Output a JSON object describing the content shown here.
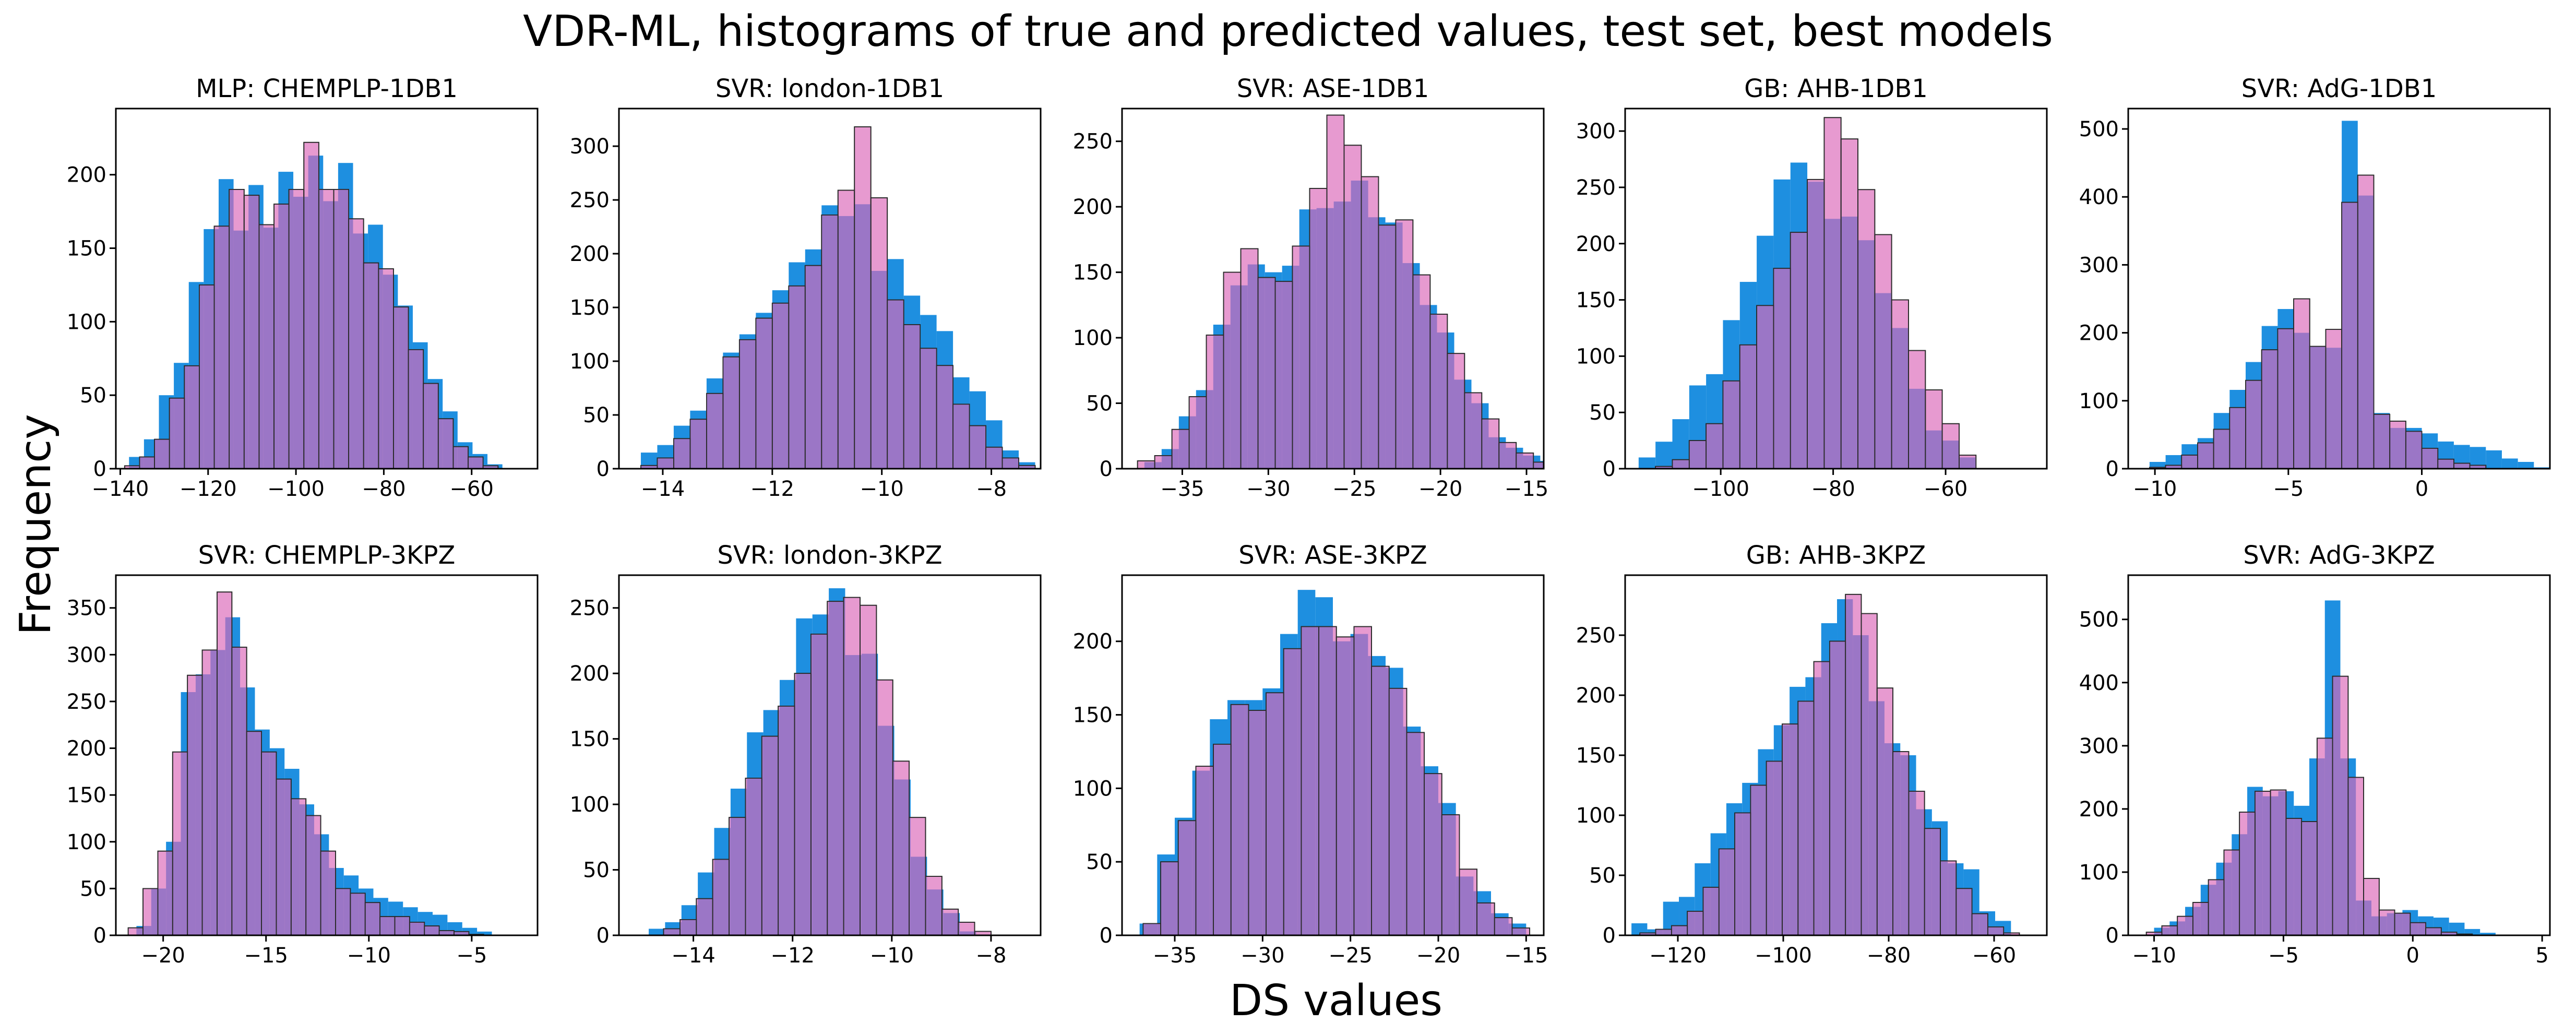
{
  "figure": {
    "title": "VDR-ML, histograms of true and predicted values, test set, best models",
    "xlabel": "DS values",
    "ylabel": "Frequency",
    "colors": {
      "true": "#1e8fe0",
      "predicted": "#e79ad0",
      "overlap": "#9b76c6",
      "edge": "#2a2a2a"
    }
  },
  "chart_data": [
    {
      "type": "bar",
      "title": "MLP: CHEMPLP-1DB1",
      "xlim": [
        -141,
        -45
      ],
      "ylim": [
        0,
        245
      ],
      "xticks": [
        -140,
        -120,
        -100,
        -80,
        -60
      ],
      "yticks": [
        0,
        50,
        100,
        150,
        200
      ],
      "series": [
        {
          "role": "true",
          "start": -138,
          "width": 3.4,
          "values": [
            8,
            20,
            50,
            72,
            127,
            163,
            197,
            162,
            193,
            164,
            202,
            185,
            213,
            182,
            208,
            160,
            166,
            132,
            111,
            86,
            61,
            39,
            18,
            10,
            3
          ]
        },
        {
          "role": "predicted",
          "start": -139,
          "width": 3.4,
          "values": [
            2,
            8,
            20,
            48,
            70,
            125,
            165,
            190,
            186,
            166,
            180,
            190,
            222,
            190,
            190,
            170,
            140,
            136,
            110,
            81,
            58,
            34,
            15,
            8,
            2
          ]
        }
      ]
    },
    {
      "type": "bar",
      "title": "SVR: london-1DB1",
      "xlim": [
        -14.8,
        -7.1
      ],
      "ylim": [
        0,
        335
      ],
      "xticks": [
        -14,
        -12,
        -10,
        -8
      ],
      "yticks": [
        0,
        50,
        100,
        150,
        200,
        250,
        300
      ],
      "series": [
        {
          "role": "true",
          "start": -14.4,
          "width": 0.3,
          "values": [
            15,
            22,
            40,
            54,
            84,
            108,
            125,
            145,
            166,
            192,
            204,
            245,
            235,
            246,
            184,
            195,
            161,
            143,
            128,
            85,
            72,
            45,
            17,
            6
          ]
        },
        {
          "role": "predicted",
          "start": -14.4,
          "width": 0.3,
          "values": [
            3,
            10,
            28,
            46,
            70,
            104,
            120,
            140,
            154,
            170,
            189,
            236,
            259,
            318,
            252,
            157,
            134,
            112,
            96,
            60,
            40,
            20,
            10,
            3
          ]
        }
      ]
    },
    {
      "type": "bar",
      "title": "SVR: ASE-1DB1",
      "xlim": [
        -38.5,
        -14
      ],
      "ylim": [
        0,
        275
      ],
      "xticks": [
        -35,
        -30,
        -25,
        -20,
        -15
      ],
      "yticks": [
        0,
        50,
        100,
        150,
        200,
        250
      ],
      "series": [
        {
          "role": "true",
          "start": -37.2,
          "width": 1,
          "values": [
            5,
            15,
            40,
            60,
            110,
            140,
            156,
            150,
            155,
            198,
            199,
            204,
            220,
            192,
            188,
            157,
            125,
            104,
            68,
            50,
            24,
            16,
            10,
            6
          ]
        },
        {
          "role": "predicted",
          "start": -37.6,
          "width": 1,
          "values": [
            6,
            10,
            30,
            55,
            102,
            150,
            168,
            146,
            143,
            170,
            214,
            270,
            247,
            223,
            186,
            190,
            148,
            118,
            88,
            58,
            38,
            20,
            12,
            5
          ]
        }
      ]
    },
    {
      "type": "bar",
      "title": "GB: AHB-1DB1",
      "xlim": [
        -117,
        -42
      ],
      "ylim": [
        0,
        320
      ],
      "xticks": [
        -100,
        -80,
        -60
      ],
      "yticks": [
        0,
        50,
        100,
        150,
        200,
        250,
        300
      ],
      "series": [
        {
          "role": "true",
          "start": -114.6,
          "width": 3,
          "values": [
            10,
            24,
            44,
            74,
            84,
            132,
            166,
            207,
            257,
            272,
            255,
            222,
            224,
            203,
            156,
            125,
            71,
            34,
            25,
            10
          ]
        },
        {
          "role": "predicted",
          "start": -111.6,
          "width": 3,
          "values": [
            2,
            8,
            25,
            40,
            78,
            110,
            145,
            178,
            210,
            257,
            312,
            293,
            248,
            208,
            150,
            105,
            70,
            40,
            12
          ]
        }
      ]
    },
    {
      "type": "bar",
      "title": "SVR: AdG-1DB1",
      "xlim": [
        -11,
        4.8
      ],
      "ylim": [
        0,
        530
      ],
      "xticks": [
        -10,
        -5,
        0
      ],
      "yticks": [
        0,
        100,
        200,
        300,
        400,
        500
      ],
      "series": [
        {
          "role": "true",
          "start": -10.2,
          "width": 0.6,
          "values": [
            10,
            20,
            36,
            45,
            82,
            116,
            157,
            210,
            235,
            200,
            180,
            178,
            512,
            402,
            82,
            60,
            60,
            52,
            40,
            35,
            32,
            27,
            15,
            10,
            2
          ]
        },
        {
          "role": "predicted",
          "start": -10.2,
          "width": 0.6,
          "values": [
            2,
            5,
            20,
            38,
            58,
            90,
            130,
            175,
            206,
            250,
            180,
            205,
            392,
            432,
            80,
            70,
            55,
            30,
            14,
            8,
            5
          ]
        }
      ]
    },
    {
      "type": "bar",
      "title": "SVR: CHEMPLP-3KPZ",
      "xlim": [
        -22.3,
        -1.8
      ],
      "ylim": [
        0,
        385
      ],
      "xticks": [
        -20,
        -15,
        -10,
        -5
      ],
      "yticks": [
        0,
        50,
        100,
        150,
        200,
        250,
        300,
        350
      ],
      "series": [
        {
          "role": "true",
          "start": -21.3,
          "width": 0.72,
          "values": [
            10,
            50,
            100,
            260,
            279,
            305,
            340,
            265,
            220,
            200,
            178,
            140,
            108,
            72,
            64,
            50,
            40,
            36,
            30,
            25,
            22,
            14,
            8,
            4
          ]
        },
        {
          "role": "predicted",
          "start": -21.7,
          "width": 0.72,
          "values": [
            8,
            50,
            90,
            196,
            278,
            305,
            367,
            308,
            218,
            196,
            167,
            146,
            128,
            90,
            50,
            45,
            35,
            20,
            20,
            14,
            10,
            5,
            4,
            1
          ]
        }
      ]
    },
    {
      "type": "bar",
      "title": "SVR: london-3KPZ",
      "xlim": [
        -15.5,
        -7
      ],
      "ylim": [
        0,
        275
      ],
      "xticks": [
        -14,
        -12,
        -10,
        -8
      ],
      "yticks": [
        0,
        50,
        100,
        150,
        200,
        250
      ],
      "series": [
        {
          "role": "true",
          "start": -14.9,
          "width": 0.33,
          "values": [
            5,
            10,
            23,
            48,
            82,
            112,
            155,
            172,
            195,
            242,
            245,
            265,
            214,
            215,
            160,
            119,
            60,
            35,
            17,
            3
          ]
        },
        {
          "role": "predicted",
          "start": -14.6,
          "width": 0.33,
          "values": [
            5,
            12,
            28,
            58,
            90,
            120,
            152,
            175,
            200,
            230,
            255,
            258,
            252,
            195,
            133,
            90,
            45,
            20,
            10,
            3
          ]
        }
      ]
    },
    {
      "type": "bar",
      "title": "SVR: ASE-3KPZ",
      "xlim": [
        -38,
        -14
      ],
      "ylim": [
        0,
        245
      ],
      "xticks": [
        -35,
        -30,
        -25,
        -20,
        -15
      ],
      "yticks": [
        0,
        50,
        100,
        150,
        200
      ],
      "series": [
        {
          "role": "true",
          "start": -37,
          "width": 1,
          "values": [
            8,
            55,
            80,
            112,
            147,
            160,
            160,
            168,
            205,
            235,
            230,
            200,
            205,
            190,
            182,
            142,
            115,
            90,
            40,
            30,
            15,
            8
          ]
        },
        {
          "role": "predicted",
          "start": -36.8,
          "width": 1,
          "values": [
            8,
            50,
            78,
            115,
            130,
            157,
            153,
            165,
            195,
            210,
            210,
            203,
            210,
            183,
            168,
            138,
            110,
            82,
            45,
            22,
            12,
            5
          ]
        }
      ]
    },
    {
      "type": "bar",
      "title": "GB: AHB-3KPZ",
      "xlim": [
        -130,
        -50
      ],
      "ylim": [
        0,
        300
      ],
      "xticks": [
        -120,
        -100,
        -80,
        -60
      ],
      "yticks": [
        0,
        50,
        100,
        150,
        200,
        250
      ],
      "series": [
        {
          "role": "true",
          "start": -128.8,
          "width": 3,
          "values": [
            10,
            5,
            28,
            32,
            60,
            85,
            110,
            127,
            155,
            175,
            207,
            215,
            260,
            280,
            250,
            195,
            160,
            150,
            105,
            95,
            60,
            55,
            20,
            12
          ]
        },
        {
          "role": "predicted",
          "start": -127.2,
          "width": 3,
          "values": [
            2,
            5,
            8,
            20,
            40,
            72,
            102,
            125,
            145,
            176,
            195,
            228,
            245,
            284,
            268,
            206,
            153,
            120,
            89,
            62,
            39,
            18,
            7,
            2
          ]
        }
      ]
    },
    {
      "type": "bar",
      "title": "SVR: AdG-3KPZ",
      "xlim": [
        -11,
        5.3
      ],
      "ylim": [
        0,
        570
      ],
      "xticks": [
        -10,
        -5,
        0,
        5
      ],
      "yticks": [
        0,
        100,
        200,
        300,
        400,
        500
      ],
      "series": [
        {
          "role": "true",
          "start": -10,
          "width": 0.6,
          "values": [
            12,
            22,
            45,
            80,
            115,
            160,
            235,
            220,
            228,
            205,
            280,
            530,
            280,
            55,
            30,
            35,
            40,
            30,
            28,
            20,
            10,
            4
          ]
        },
        {
          "role": "predicted",
          "start": -10.3,
          "width": 0.6,
          "values": [
            5,
            15,
            30,
            52,
            88,
            135,
            195,
            228,
            230,
            185,
            180,
            312,
            410,
            250,
            90,
            40,
            35,
            20,
            12,
            5,
            2
          ]
        }
      ]
    }
  ]
}
